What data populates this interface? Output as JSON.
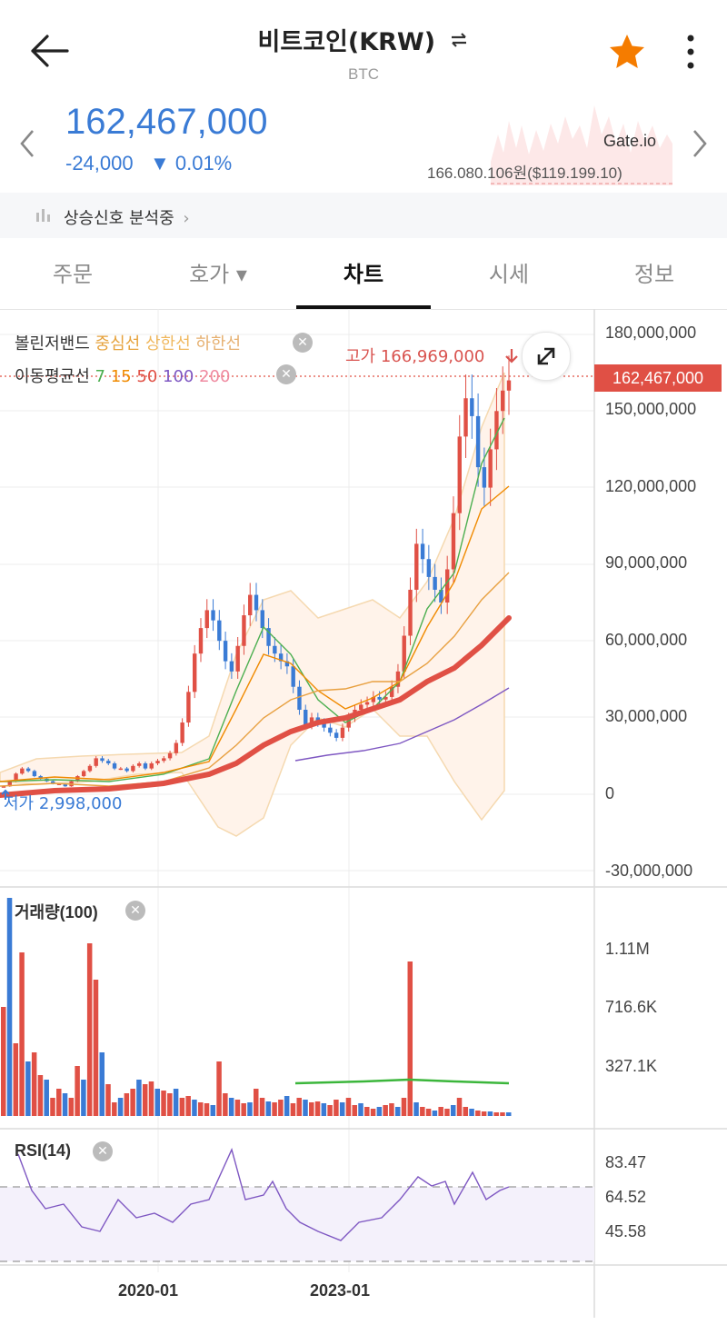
{
  "header": {
    "title": "비트코인(KRW)",
    "swap_icon": "swap-icon",
    "subtitle": "BTC",
    "star_color": "#f57c00"
  },
  "price": {
    "current": "162,467,000",
    "change": "-24,000",
    "change_pct": "▼ 0.01%",
    "color": "#3a7bd5"
  },
  "exchange": {
    "name": "Gate.io",
    "price": "166.080.106원($119.199.10)"
  },
  "signal": {
    "label": "상승신호 분석중"
  },
  "tabs": [
    {
      "label": "주문"
    },
    {
      "label": "호가 ▾"
    },
    {
      "label": "차트"
    },
    {
      "label": "시세"
    },
    {
      "label": "정보"
    }
  ],
  "indicators": {
    "bollinger": {
      "name": "볼린저밴드",
      "mid": "중심선",
      "upper": "상한선",
      "lower": "하한선"
    },
    "ma": {
      "name": "이동평균선",
      "periods": [
        "7",
        "15",
        "50",
        "100",
        "200"
      ],
      "colors": [
        "#4caf50",
        "#f08a00",
        "#e05045",
        "#7e57c2",
        "#ef8aa0"
      ]
    }
  },
  "chart_data": {
    "type": "line",
    "x_ticks": [
      "2020-01",
      "2023-01"
    ],
    "y_ticks": [
      "180,000,000",
      "150,000,000",
      "120,000,000",
      "90,000,000",
      "60,000,000",
      "30,000,000",
      "0",
      "-30,000,000"
    ],
    "current_price_label": "162,467,000",
    "high_label": "고가 166,969,000",
    "low_label": "저가 2,998,000",
    "ylim": [
      -30000000,
      180000000
    ],
    "close_series": [
      3,
      5,
      8,
      10,
      9,
      7,
      6,
      5,
      4,
      4,
      3,
      5,
      7,
      9,
      11,
      14,
      13,
      12,
      10,
      10,
      9,
      11,
      12,
      10,
      12,
      13,
      14,
      16,
      20,
      28,
      40,
      55,
      65,
      72,
      68,
      60,
      52,
      48,
      58,
      70,
      78,
      72,
      65,
      58,
      55,
      52,
      50,
      42,
      33,
      27,
      30,
      28,
      26,
      24,
      22,
      26,
      30,
      33,
      35,
      36,
      38,
      37,
      38,
      42,
      48,
      62,
      80,
      98,
      92,
      85,
      80,
      75,
      88,
      110,
      140,
      155,
      148,
      128,
      120,
      135,
      150,
      158,
      162
    ]
  },
  "volume": {
    "title": "거래량(100)",
    "ticks": [
      "1.11M",
      "716.6K",
      "327.1K"
    ]
  },
  "rsi": {
    "title": "RSI(14)",
    "ticks": [
      "83.47",
      "64.52",
      "45.58"
    ]
  }
}
